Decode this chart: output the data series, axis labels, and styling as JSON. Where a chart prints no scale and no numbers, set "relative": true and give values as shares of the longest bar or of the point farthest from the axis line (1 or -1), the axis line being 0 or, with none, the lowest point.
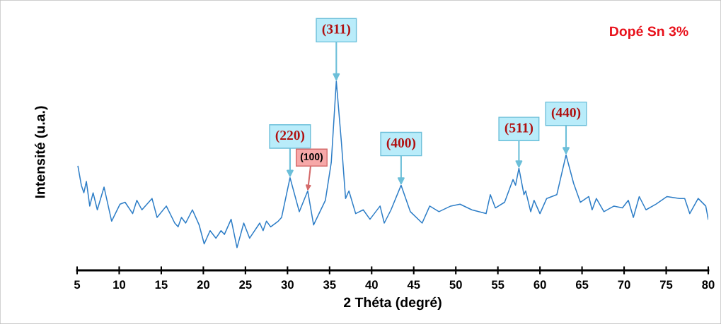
{
  "chart_data": {
    "type": "line",
    "relative": true,
    "xlabel": "2 Théta (degré)",
    "ylabel": "Intensité (u.a.)",
    "xlim": [
      5,
      80
    ],
    "xticks": [
      5,
      10,
      15,
      20,
      25,
      30,
      35,
      40,
      45,
      50,
      55,
      60,
      65,
      70,
      75,
      80
    ],
    "grid": false,
    "marker": "none",
    "line_style": "solid",
    "series": [
      {
        "color": "#2e7ec7",
        "x": [
          5.1,
          5.5,
          5.8,
          6.1,
          6.5,
          6.9,
          7.4,
          8.2,
          9.1,
          10.1,
          10.7,
          11.6,
          12.1,
          12.7,
          13.9,
          14.5,
          15.6,
          16.6,
          17.0,
          17.4,
          17.9,
          18.7,
          19.5,
          20.1,
          20.8,
          21.5,
          22.1,
          22.5,
          23.3,
          24.0,
          24.8,
          25.5,
          26.7,
          27.1,
          27.5,
          28.0,
          28.9,
          29.3,
          30.3,
          31.4,
          32.4,
          33.1,
          34.5,
          35.2,
          35.8,
          36.4,
          36.9,
          37.3,
          38.1,
          39.0,
          39.8,
          41.0,
          41.5,
          42.3,
          43.5,
          44.6,
          46.0,
          46.9,
          48.0,
          49.4,
          50.5,
          51.9,
          53.6,
          54.1,
          54.7,
          55.8,
          56.8,
          57.1,
          57.5,
          58.1,
          58.3,
          58.9,
          59.3,
          60.0,
          60.8,
          62.0,
          63.1,
          64.0,
          64.8,
          65.8,
          66.2,
          66.7,
          67.6,
          68.8,
          69.8,
          70.5,
          71.1,
          71.8,
          72.6,
          73.8,
          75.1,
          76.6,
          77.2,
          77.8,
          78.8,
          79.7,
          80.0
        ],
        "values": [
          0.55,
          0.45,
          0.41,
          0.47,
          0.34,
          0.41,
          0.32,
          0.44,
          0.26,
          0.35,
          0.36,
          0.3,
          0.37,
          0.32,
          0.38,
          0.28,
          0.34,
          0.25,
          0.23,
          0.28,
          0.25,
          0.32,
          0.24,
          0.14,
          0.21,
          0.17,
          0.21,
          0.19,
          0.27,
          0.12,
          0.25,
          0.17,
          0.25,
          0.21,
          0.26,
          0.23,
          0.26,
          0.28,
          0.49,
          0.31,
          0.42,
          0.24,
          0.37,
          0.57,
          1.0,
          0.68,
          0.38,
          0.42,
          0.3,
          0.32,
          0.27,
          0.34,
          0.25,
          0.32,
          0.45,
          0.31,
          0.25,
          0.34,
          0.31,
          0.34,
          0.35,
          0.32,
          0.3,
          0.4,
          0.33,
          0.36,
          0.48,
          0.45,
          0.54,
          0.4,
          0.42,
          0.31,
          0.37,
          0.3,
          0.38,
          0.4,
          0.61,
          0.46,
          0.36,
          0.39,
          0.32,
          0.38,
          0.31,
          0.34,
          0.33,
          0.37,
          0.28,
          0.39,
          0.32,
          0.35,
          0.39,
          0.38,
          0.38,
          0.3,
          0.38,
          0.34,
          0.27
        ]
      }
    ],
    "annotations": [
      {
        "text": "(220)",
        "x": 30.3,
        "y": 0.49
      },
      {
        "text": "(100)",
        "x": 32.4,
        "y": 0.42
      },
      {
        "text": "(311)",
        "x": 35.8,
        "y": 1.0
      },
      {
        "text": "(400)",
        "x": 43.5,
        "y": 0.45
      },
      {
        "text": "(511)",
        "x": 57.5,
        "y": 0.54
      },
      {
        "text": "(440)",
        "x": 63.1,
        "y": 0.61
      },
      "Dopé Sn 3%"
    ]
  }
}
